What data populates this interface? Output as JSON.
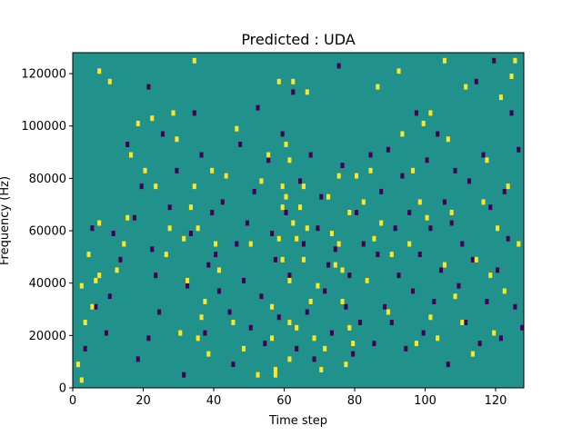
{
  "chart_data": {
    "type": "heatmap",
    "title": "Predicted : UDA",
    "xlabel": "Time step",
    "ylabel": "Frequency (Hz)",
    "xlim": [
      0,
      128
    ],
    "ylim": [
      0,
      128000
    ],
    "xticks": [
      0,
      20,
      40,
      60,
      80,
      100,
      120
    ],
    "yticks": [
      0,
      20000,
      40000,
      60000,
      80000,
      100000,
      120000
    ],
    "n_time_steps": 128,
    "n_freq_bins": 64,
    "freq_bin_hz": 2000,
    "background_value": 0,
    "value_colors": {
      "-1": "#440154",
      "0": "#21918c",
      "1": "#fde725"
    },
    "cells": {
      "high": [
        [
          1,
          4
        ],
        [
          2,
          1
        ],
        [
          2,
          19
        ],
        [
          3,
          12
        ],
        [
          4,
          25
        ],
        [
          5,
          15
        ],
        [
          6,
          20
        ],
        [
          7,
          21
        ],
        [
          7,
          31
        ],
        [
          7,
          60
        ],
        [
          10,
          58
        ],
        [
          12,
          22
        ],
        [
          14,
          27
        ],
        [
          15,
          32
        ],
        [
          16,
          44
        ],
        [
          18,
          50
        ],
        [
          20,
          41
        ],
        [
          22,
          51
        ],
        [
          23,
          38
        ],
        [
          26,
          25
        ],
        [
          27,
          30
        ],
        [
          28,
          52
        ],
        [
          29,
          47
        ],
        [
          30,
          10
        ],
        [
          31,
          28
        ],
        [
          32,
          20
        ],
        [
          33,
          34
        ],
        [
          34,
          62
        ],
        [
          34,
          38
        ],
        [
          35,
          9
        ],
        [
          35,
          30
        ],
        [
          36,
          13
        ],
        [
          37,
          16
        ],
        [
          38,
          6
        ],
        [
          39,
          41
        ],
        [
          40,
          27
        ],
        [
          41,
          22
        ],
        [
          43,
          40
        ],
        [
          45,
          12
        ],
        [
          46,
          49
        ],
        [
          48,
          7
        ],
        [
          50,
          27
        ],
        [
          52,
          2
        ],
        [
          53,
          39
        ],
        [
          55,
          44
        ],
        [
          56,
          9
        ],
        [
          56,
          15
        ],
        [
          57,
          2
        ],
        [
          57,
          3
        ],
        [
          58,
          28
        ],
        [
          58,
          58
        ],
        [
          59,
          24
        ],
        [
          59,
          34
        ],
        [
          59,
          38
        ],
        [
          60,
          46
        ],
        [
          60,
          36
        ],
        [
          61,
          5
        ],
        [
          61,
          12
        ],
        [
          61,
          20
        ],
        [
          61,
          43
        ],
        [
          62,
          31
        ],
        [
          62,
          58
        ],
        [
          63,
          11
        ],
        [
          63,
          28
        ],
        [
          64,
          34
        ],
        [
          65,
          24
        ],
        [
          65,
          38
        ],
        [
          66,
          56
        ],
        [
          66,
          30
        ],
        [
          67,
          16
        ],
        [
          68,
          9
        ],
        [
          69,
          19
        ],
        [
          70,
          3
        ],
        [
          71,
          7
        ],
        [
          72,
          36
        ],
        [
          73,
          29
        ],
        [
          74,
          23
        ],
        [
          75,
          40
        ],
        [
          75,
          27
        ],
        [
          76,
          22
        ],
        [
          76,
          16
        ],
        [
          77,
          4
        ],
        [
          78,
          33
        ],
        [
          78,
          11
        ],
        [
          79,
          8
        ],
        [
          80,
          40
        ],
        [
          82,
          35
        ],
        [
          83,
          20
        ],
        [
          84,
          41
        ],
        [
          85,
          28
        ],
        [
          86,
          57
        ],
        [
          87,
          31
        ],
        [
          89,
          14
        ],
        [
          90,
          25
        ],
        [
          92,
          60
        ],
        [
          93,
          48
        ],
        [
          95,
          27
        ],
        [
          96,
          41
        ],
        [
          97,
          8
        ],
        [
          98,
          35
        ],
        [
          99,
          50
        ],
        [
          100,
          32
        ],
        [
          101,
          13
        ],
        [
          101,
          52
        ],
        [
          103,
          9
        ],
        [
          105,
          62
        ],
        [
          105,
          23
        ],
        [
          106,
          47
        ],
        [
          107,
          33
        ],
        [
          108,
          17
        ],
        [
          110,
          12
        ],
        [
          111,
          57
        ],
        [
          113,
          6
        ],
        [
          114,
          24
        ],
        [
          116,
          35
        ],
        [
          117,
          43
        ],
        [
          118,
          21
        ],
        [
          119,
          10
        ],
        [
          120,
          30
        ],
        [
          121,
          55
        ],
        [
          122,
          18
        ],
        [
          123,
          38
        ],
        [
          124,
          59
        ],
        [
          125,
          62
        ],
        [
          126,
          27
        ]
      ],
      "low": [
        [
          3,
          7
        ],
        [
          5,
          30
        ],
        [
          6,
          15
        ],
        [
          9,
          10
        ],
        [
          10,
          17
        ],
        [
          11,
          29
        ],
        [
          13,
          24
        ],
        [
          15,
          46
        ],
        [
          17,
          32
        ],
        [
          18,
          5
        ],
        [
          19,
          38
        ],
        [
          21,
          9
        ],
        [
          21,
          57
        ],
        [
          22,
          26
        ],
        [
          23,
          21
        ],
        [
          24,
          14
        ],
        [
          25,
          48
        ],
        [
          27,
          34
        ],
        [
          29,
          41
        ],
        [
          31,
          2
        ],
        [
          32,
          19
        ],
        [
          33,
          29
        ],
        [
          34,
          52
        ],
        [
          36,
          44
        ],
        [
          37,
          10
        ],
        [
          38,
          23
        ],
        [
          39,
          33
        ],
        [
          40,
          25
        ],
        [
          41,
          18
        ],
        [
          42,
          35
        ],
        [
          43,
          40
        ],
        [
          44,
          14
        ],
        [
          45,
          4
        ],
        [
          46,
          27
        ],
        [
          47,
          46
        ],
        [
          48,
          20
        ],
        [
          49,
          31
        ],
        [
          50,
          11
        ],
        [
          51,
          37
        ],
        [
          52,
          53
        ],
        [
          53,
          17
        ],
        [
          54,
          8
        ],
        [
          55,
          43
        ],
        [
          56,
          29
        ],
        [
          57,
          24
        ],
        [
          58,
          13
        ],
        [
          59,
          48
        ],
        [
          60,
          33
        ],
        [
          61,
          21
        ],
        [
          62,
          56
        ],
        [
          63,
          7
        ],
        [
          64,
          39
        ],
        [
          65,
          27
        ],
        [
          66,
          14
        ],
        [
          67,
          44
        ],
        [
          68,
          5
        ],
        [
          69,
          30
        ],
        [
          70,
          36
        ],
        [
          71,
          18
        ],
        [
          72,
          23
        ],
        [
          73,
          10
        ],
        [
          74,
          26
        ],
        [
          75,
          61
        ],
        [
          76,
          42
        ],
        [
          77,
          15
        ],
        [
          78,
          21
        ],
        [
          79,
          6
        ],
        [
          80,
          33
        ],
        [
          81,
          12
        ],
        [
          82,
          27
        ],
        [
          83,
          20
        ],
        [
          84,
          44
        ],
        [
          85,
          8
        ],
        [
          86,
          25
        ],
        [
          87,
          37
        ],
        [
          88,
          15
        ],
        [
          89,
          45
        ],
        [
          90,
          12
        ],
        [
          91,
          30
        ],
        [
          92,
          21
        ],
        [
          93,
          40
        ],
        [
          94,
          7
        ],
        [
          95,
          33
        ],
        [
          96,
          18
        ],
        [
          97,
          52
        ],
        [
          98,
          25
        ],
        [
          99,
          10
        ],
        [
          100,
          43
        ],
        [
          101,
          30
        ],
        [
          102,
          16
        ],
        [
          103,
          48
        ],
        [
          104,
          22
        ],
        [
          105,
          35
        ],
        [
          106,
          4
        ],
        [
          107,
          31
        ],
        [
          108,
          41
        ],
        [
          109,
          19
        ],
        [
          110,
          27
        ],
        [
          111,
          12
        ],
        [
          112,
          39
        ],
        [
          113,
          24
        ],
        [
          114,
          58
        ],
        [
          115,
          8
        ],
        [
          116,
          44
        ],
        [
          117,
          16
        ],
        [
          118,
          34
        ],
        [
          119,
          62
        ],
        [
          120,
          22
        ],
        [
          121,
          9
        ],
        [
          122,
          37
        ],
        [
          123,
          28
        ],
        [
          124,
          52
        ],
        [
          125,
          15
        ],
        [
          126,
          45
        ],
        [
          127,
          11
        ]
      ]
    }
  }
}
